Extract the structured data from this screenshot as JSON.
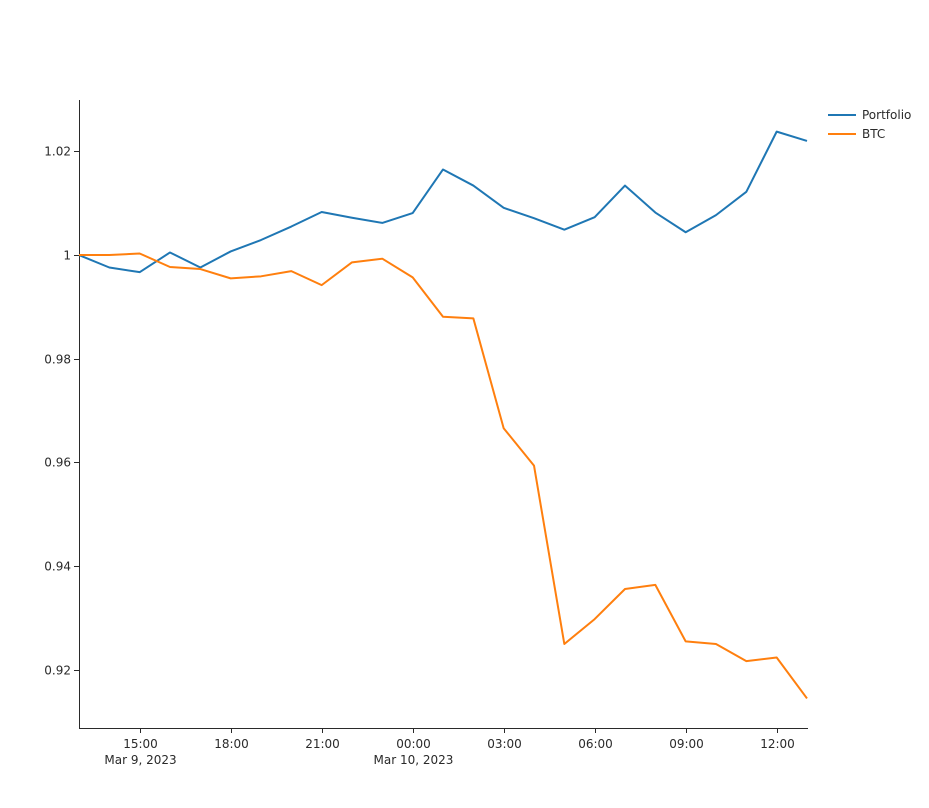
{
  "chart_data": {
    "type": "line",
    "title": "",
    "xlabel": "",
    "ylabel": "",
    "x": [
      "2023-03-09 13:00",
      "2023-03-09 14:00",
      "2023-03-09 15:00",
      "2023-03-09 16:00",
      "2023-03-09 17:00",
      "2023-03-09 18:00",
      "2023-03-09 19:00",
      "2023-03-09 20:00",
      "2023-03-09 21:00",
      "2023-03-09 22:00",
      "2023-03-09 23:00",
      "2023-03-10 00:00",
      "2023-03-10 01:00",
      "2023-03-10 02:00",
      "2023-03-10 03:00",
      "2023-03-10 04:00",
      "2023-03-10 05:00",
      "2023-03-10 06:00",
      "2023-03-10 07:00",
      "2023-03-10 08:00",
      "2023-03-10 09:00",
      "2023-03-10 10:00",
      "2023-03-10 11:00",
      "2023-03-10 12:00",
      "2023-03-10 13:00"
    ],
    "series": [
      {
        "name": "Portfolio",
        "color": "#1f77b4",
        "values": [
          1.0,
          0.9976,
          0.9967,
          1.0005,
          0.9976,
          1.0007,
          1.0029,
          1.0055,
          1.0083,
          1.0072,
          1.0062,
          1.0081,
          1.0165,
          1.0134,
          1.0091,
          1.0071,
          1.0049,
          1.0073,
          1.0134,
          1.0082,
          1.0044,
          1.0077,
          1.0122,
          1.0238,
          1.022
        ]
      },
      {
        "name": "BTC",
        "color": "#ff7f0e",
        "values": [
          1.0,
          1.0,
          1.0003,
          0.9977,
          0.9973,
          0.9955,
          0.9959,
          0.9969,
          0.9942,
          0.9986,
          0.9993,
          0.9957,
          0.9881,
          0.9878,
          0.9666,
          0.9594,
          0.925,
          0.9298,
          0.9356,
          0.9364,
          0.9255,
          0.925,
          0.9217,
          0.9224,
          0.9145
        ]
      }
    ],
    "xlim": [
      "2023-03-09 13:00",
      "2023-03-10 13:00"
    ],
    "ylim": [
      0.9088,
      1.0299
    ],
    "yticks": [
      0.92,
      0.94,
      0.96,
      0.98,
      1.0,
      1.02
    ],
    "ytick_labels": [
      "0.92",
      "0.94",
      "0.96",
      "0.98",
      "1",
      "1.02"
    ],
    "xticks": [
      {
        "t": "2023-03-09 15:00",
        "label": "15:00",
        "sublabel": "Mar 9, 2023"
      },
      {
        "t": "2023-03-09 18:00",
        "label": "18:00",
        "sublabel": ""
      },
      {
        "t": "2023-03-09 21:00",
        "label": "21:00",
        "sublabel": ""
      },
      {
        "t": "2023-03-10 00:00",
        "label": "00:00",
        "sublabel": "Mar 10, 2023"
      },
      {
        "t": "2023-03-10 03:00",
        "label": "03:00",
        "sublabel": ""
      },
      {
        "t": "2023-03-10 06:00",
        "label": "06:00",
        "sublabel": ""
      },
      {
        "t": "2023-03-10 09:00",
        "label": "09:00",
        "sublabel": ""
      },
      {
        "t": "2023-03-10 12:00",
        "label": "12:00",
        "sublabel": ""
      }
    ],
    "grid": false,
    "legend_position": "top-right"
  }
}
